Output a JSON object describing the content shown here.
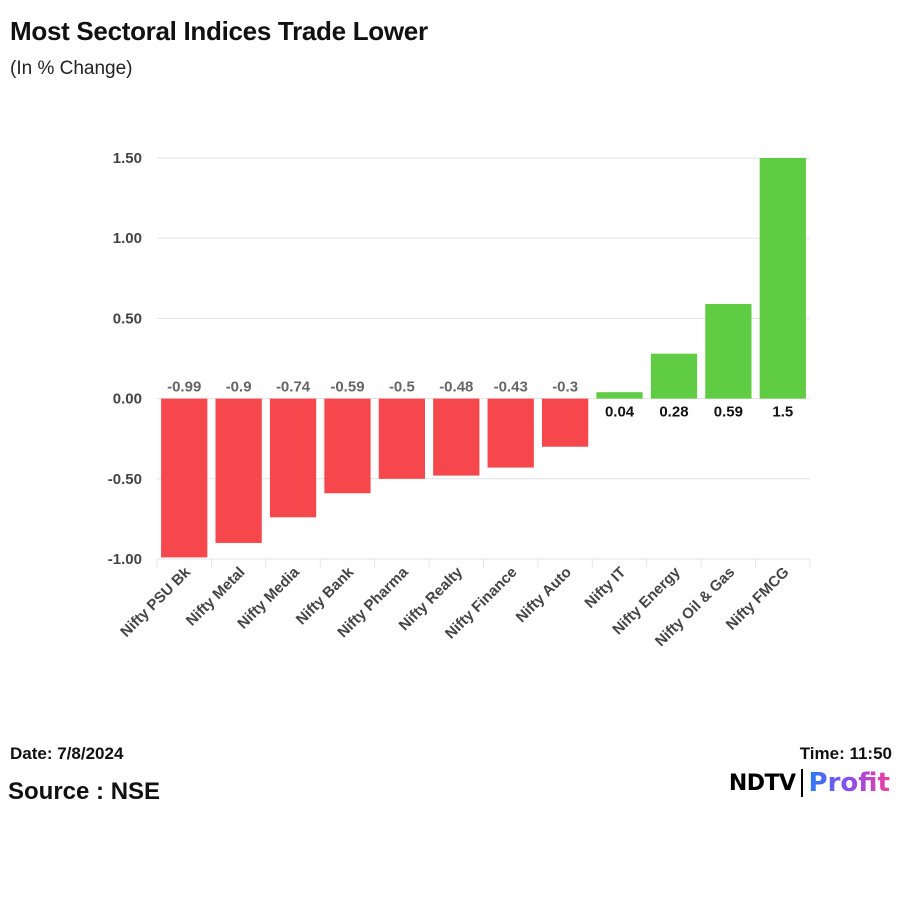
{
  "header": {
    "title": "Most Sectoral Indices Trade Lower",
    "subtitle": "(In % Change)"
  },
  "footer": {
    "date": "Date: 7/8/2024",
    "source": "Source : NSE",
    "time": "Time: 11:50",
    "logo_left": "NDTV",
    "logo_right": "Profit"
  },
  "colors": {
    "negative": "#f5474c",
    "positive": "#5fcc43",
    "grid": "#e3e3e3",
    "negative_label": "#666666",
    "positive_label": "#111111"
  },
  "chart_data": {
    "type": "bar",
    "categories": [
      "Nifty PSU Bk",
      "Nifty Metal",
      "Nifty Media",
      "Nifty Bank",
      "Nifty Pharma",
      "Nifty Realty",
      "Nifty Finance",
      "Nifty Auto",
      "Nifty IT",
      "Nifty Energy",
      "Nifty Oil & Gas",
      "Nifty FMCG"
    ],
    "values": [
      -0.99,
      -0.9,
      -0.74,
      -0.59,
      -0.5,
      -0.48,
      -0.43,
      -0.3,
      0.04,
      0.28,
      0.59,
      1.5
    ],
    "data_labels": [
      "-0.99",
      "-0.9",
      "-0.74",
      "-0.59",
      "-0.5",
      "-0.48",
      "-0.43",
      "-0.3",
      "0.04",
      "0.28",
      "0.59",
      "1.5"
    ],
    "yticks": [
      1.5,
      1.0,
      0.5,
      0.0,
      -0.5,
      -1.0
    ],
    "ytick_labels": [
      "1.50",
      "1.00",
      "0.50",
      "0.00",
      "-0.50",
      "-1.00"
    ],
    "ylim": [
      -1.0,
      1.5
    ],
    "grid": true,
    "legend": "none"
  }
}
